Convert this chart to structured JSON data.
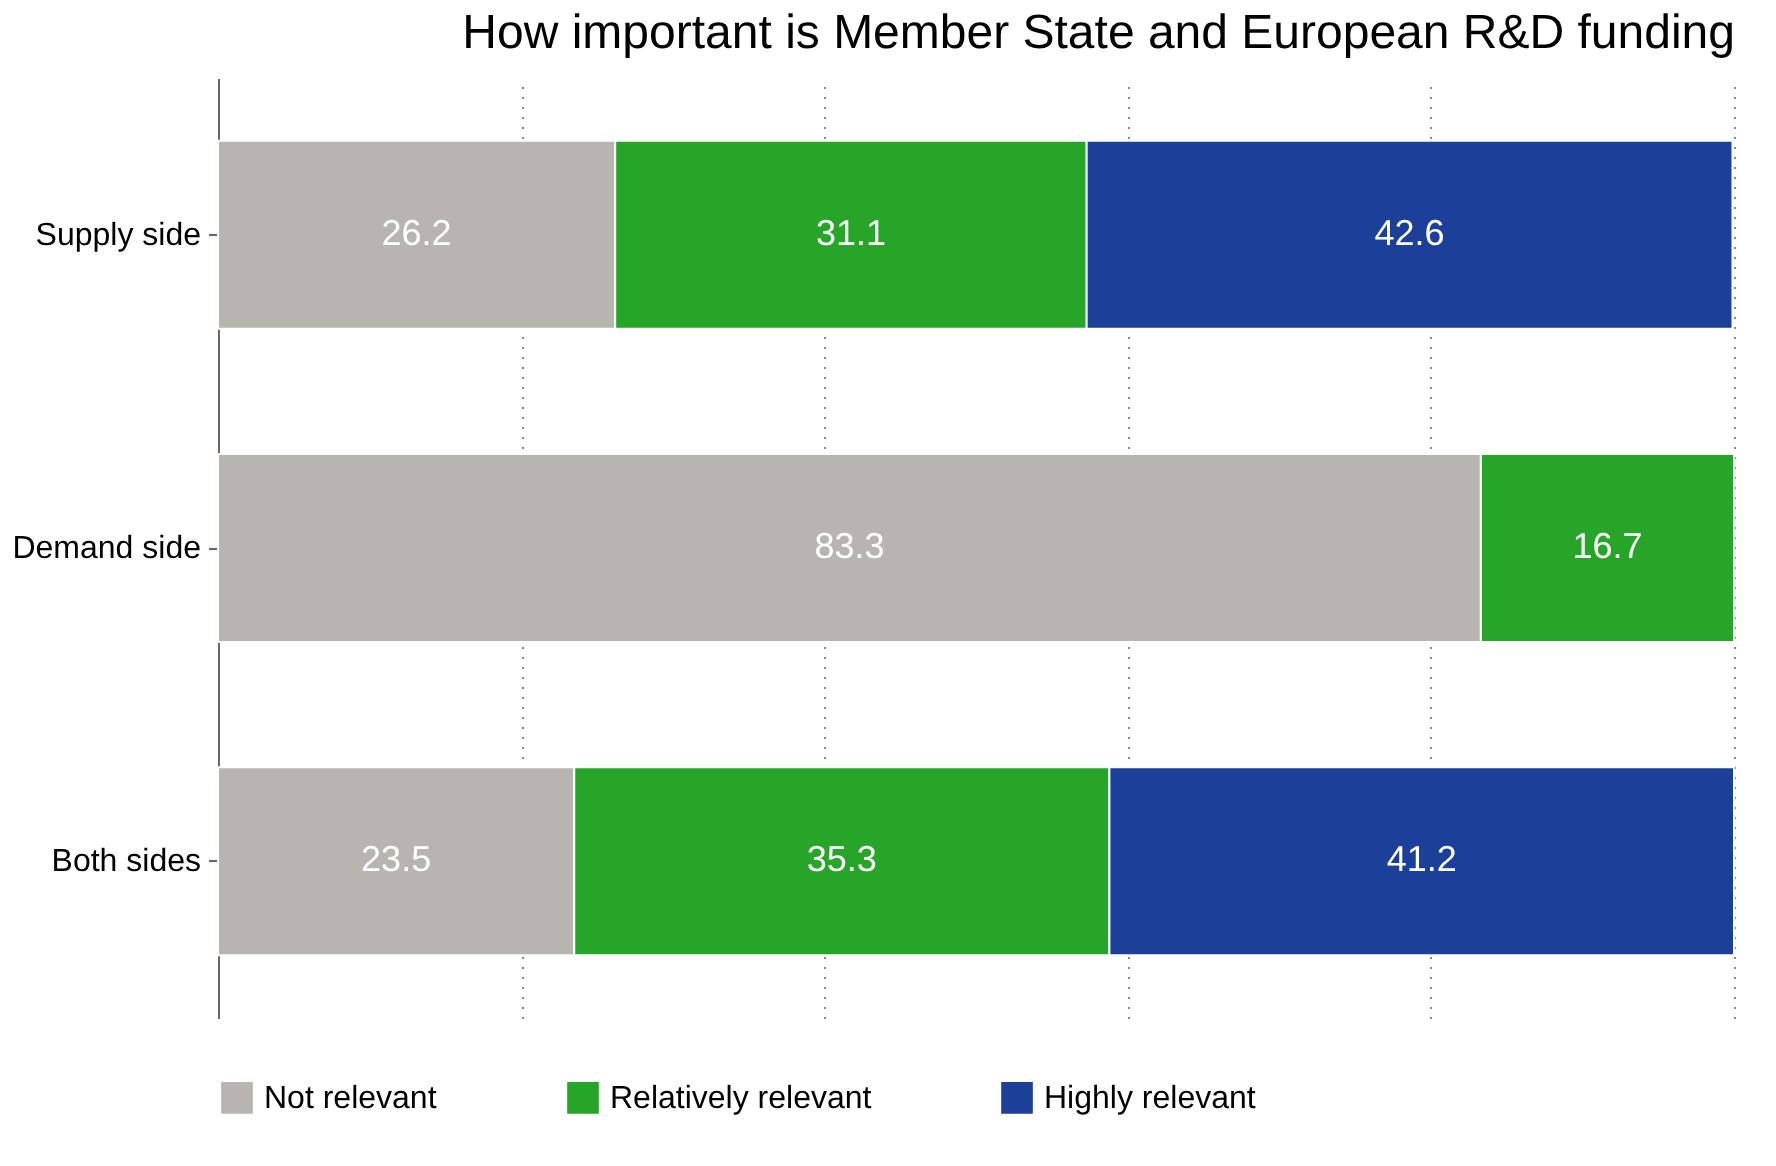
{
  "chart_data": {
    "type": "bar",
    "orientation": "horizontal",
    "stacked": true,
    "title": "How important is Member State and European R&D funding",
    "categories": [
      "Supply side",
      "Demand side",
      "Both sides"
    ],
    "series": [
      {
        "name": "Not relevant",
        "color": "#b8b5b0",
        "values": [
          26.2,
          83.3,
          23.5
        ]
      },
      {
        "name": "Relatively relevant",
        "color": "#27a528",
        "values": [
          31.1,
          16.7,
          35.3
        ]
      },
      {
        "name": "Highly relevant",
        "color": "#1c3f9a",
        "values": [
          42.6,
          null,
          41.2
        ]
      }
    ],
    "xlim": [
      0,
      100
    ],
    "xticks": [
      {
        "value": 0,
        "label": null
      },
      {
        "value": 20,
        "label": null
      },
      {
        "value": 40,
        "label": null
      },
      {
        "value": 60,
        "label": null
      },
      {
        "value": 80,
        "label": null
      },
      {
        "value": 100,
        "label": null
      }
    ],
    "tick_labels": "y",
    "grid": "x",
    "data_labels": true,
    "legend": "bottom"
  }
}
